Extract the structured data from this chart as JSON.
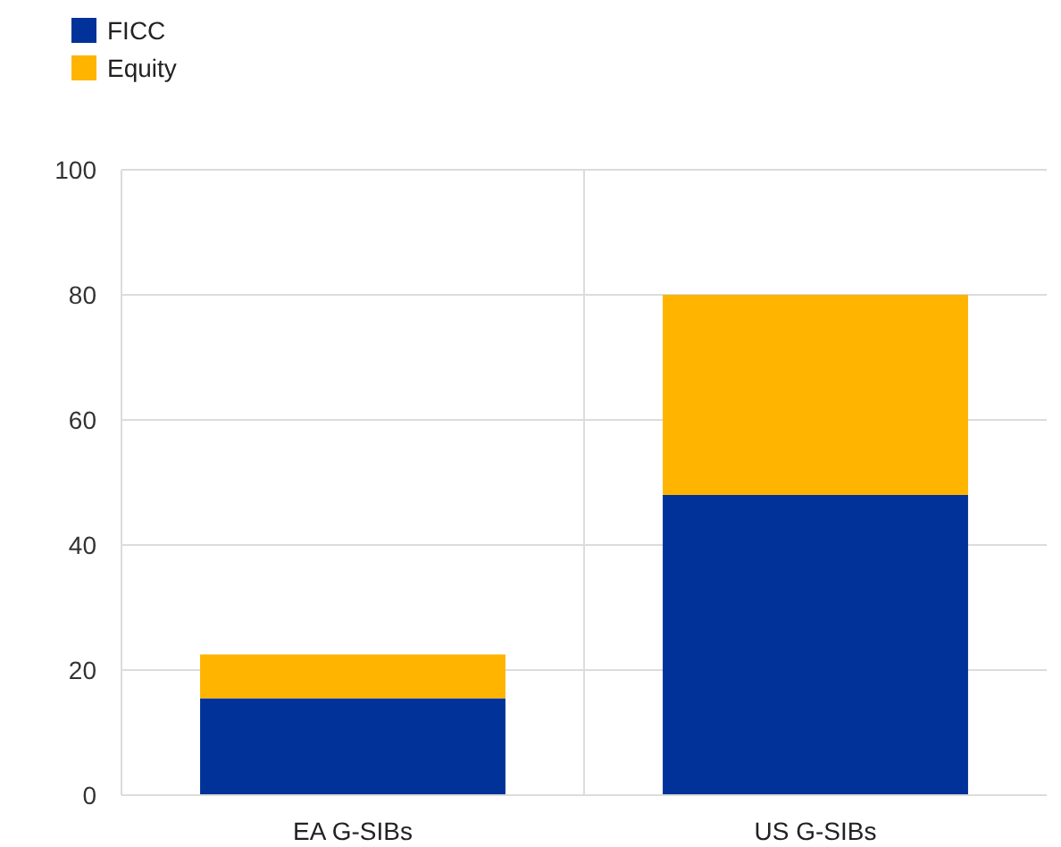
{
  "chart_data": {
    "type": "bar",
    "stacked": true,
    "categories": [
      "EA G-SIBs",
      "US G-SIBs"
    ],
    "series": [
      {
        "name": "FICC",
        "color": "#003299",
        "values": [
          15.5,
          48
        ]
      },
      {
        "name": "Equity",
        "color": "#ffb400",
        "values": [
          7,
          32
        ]
      }
    ],
    "ylim": [
      0,
      100
    ],
    "yticks": [
      0,
      20,
      40,
      60,
      80,
      100
    ],
    "grid": true,
    "legend": "top left"
  }
}
